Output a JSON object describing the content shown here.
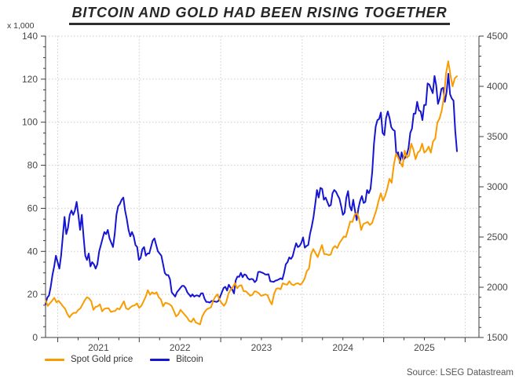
{
  "title": "BITCOIN AND GOLD HAD BEEN RISING TOGETHER",
  "left_axis_unit_label": "x 1,000",
  "source_note": "Source: LSEG Datastream",
  "legend": {
    "items": [
      {
        "label": "Spot Gold price"
      },
      {
        "label": "Bitcoin"
      }
    ]
  },
  "colors": {
    "gold": "#f89c00",
    "bitcoin": "#1515d2",
    "grid": "#cbcbcb",
    "axis": "#3d3d3d",
    "tick_text": "#474747",
    "title_text": "#262626"
  },
  "chart_data": {
    "type": "line",
    "title": "BITCOIN AND GOLD HAD BEEN RISING TOGETHER",
    "grid": true,
    "legend_position": "bottom-left",
    "x_range_years": [
      2020.85,
      2026.17
    ],
    "x_data_range": [
      2020.85,
      2025.9
    ],
    "x_major_ticks": [
      2021,
      2022,
      2023,
      2024,
      2025,
      2026
    ],
    "x_minor_step_years": 0.25,
    "x_tick_labels": [
      "2021",
      "2022",
      "2023",
      "2024",
      "2025"
    ],
    "left_axis": {
      "unit": "x 1,000",
      "applies_to": "Bitcoin (USD thousands)",
      "min": 0,
      "max": 140,
      "major_step": 20,
      "minor_step": 5,
      "labels": [
        0,
        20,
        40,
        60,
        80,
        100,
        120,
        140
      ]
    },
    "right_axis": {
      "applies_to": "Spot Gold price (USD/oz)",
      "min": 1500,
      "max": 4500,
      "major_step": 500,
      "minor_step": 100,
      "labels": [
        1500,
        2000,
        2500,
        3000,
        3500,
        4000,
        4500
      ]
    },
    "series": [
      {
        "name": "Spot Gold price",
        "axis": "right",
        "color": "#f89c00",
        "values": [
          1870,
          1815,
          1840,
          1865,
          1895,
          1850,
          1865,
          1840,
          1810,
          1785,
          1735,
          1700,
          1730,
          1745,
          1745,
          1775,
          1790,
          1830,
          1870,
          1900,
          1890,
          1860,
          1775,
          1805,
          1810,
          1830,
          1760,
          1785,
          1790,
          1790,
          1755,
          1760,
          1765,
          1790,
          1780,
          1820,
          1860,
          1790,
          1780,
          1800,
          1815,
          1820,
          1840,
          1795,
          1815,
          1860,
          1905,
          1970,
          1925,
          1950,
          1935,
          1950,
          1900,
          1880,
          1810,
          1845,
          1840,
          1830,
          1810,
          1760,
          1710,
          1730,
          1775,
          1750,
          1725,
          1700,
          1665,
          1655,
          1690,
          1650,
          1640,
          1630,
          1710,
          1750,
          1780,
          1790,
          1800,
          1865,
          1905,
          1930,
          1870,
          1840,
          1815,
          1850,
          1935,
          1975,
          2000,
          2040,
          1990,
          2015,
          2020,
          1960,
          1960,
          1940,
          1915,
          1925,
          1960,
          1955,
          1940,
          1915,
          1920,
          1930,
          1920,
          1865,
          1830,
          1935,
          1985,
          1990,
          1980,
          2040,
          2030,
          2025,
          2060,
          2030,
          2020,
          2035,
          2040,
          2025,
          2045,
          2085,
          2160,
          2185,
          2330,
          2380,
          2340,
          2300,
          2360,
          2420,
          2330,
          2330,
          2320,
          2325,
          2390,
          2410,
          2390,
          2440,
          2470,
          2505,
          2500,
          2580,
          2655,
          2650,
          2720,
          2740,
          2685,
          2570,
          2630,
          2640,
          2650,
          2620,
          2640,
          2705,
          2770,
          2860,
          2935,
          2860,
          2910,
          2985,
          3080,
          3040,
          3220,
          3330,
          3290,
          3240,
          3200,
          3360,
          3290,
          3310,
          3430,
          3370,
          3275,
          3340,
          3360,
          3430,
          3340,
          3360,
          3400,
          3340,
          3450,
          3480,
          3640,
          3680,
          3760,
          3890,
          4130,
          4250,
          4110,
          4000,
          4080,
          4100
        ]
      },
      {
        "name": "Bitcoin",
        "axis": "left",
        "values_unit": "USD thousands",
        "color": "#1515d2",
        "values": [
          15.5,
          18.5,
          19.5,
          23.5,
          29,
          33,
          38,
          35,
          32,
          38,
          47,
          56,
          48,
          51,
          57,
          59,
          57,
          59,
          63,
          57,
          50,
          57,
          47,
          38,
          36,
          39,
          33,
          35,
          34,
          32,
          34,
          40,
          43,
          46,
          49,
          48,
          50,
          46,
          44,
          42,
          48,
          57,
          61,
          62,
          64,
          65,
          59,
          55,
          50,
          47,
          49,
          47,
          43,
          42,
          36,
          37,
          41,
          42,
          38,
          39,
          39,
          42,
          45,
          46,
          43,
          40,
          39,
          38,
          34,
          30,
          29,
          29,
          27,
          21,
          20,
          19,
          21,
          22,
          23,
          24,
          24,
          23,
          21,
          20,
          19,
          20,
          19,
          19.5,
          19.5,
          19,
          20.5,
          20.5,
          18,
          16.5,
          16.5,
          16.2,
          17,
          16.8,
          16.7,
          16.5,
          17,
          19,
          21,
          23,
          23.5,
          21.8,
          24.5,
          23.2,
          22.3,
          20.5,
          26.5,
          28.3,
          28.2,
          30,
          28,
          29.3,
          29,
          27.5,
          26.9,
          27.2,
          27,
          25.7,
          26.5,
          30.4,
          30.5,
          30.2,
          29.9,
          29.3,
          29.2,
          29.4,
          26.1,
          26,
          25.8,
          26.4,
          26.6,
          27,
          27.5,
          27,
          30,
          34,
          35,
          37.2,
          36.5,
          37.8,
          41,
          43.8,
          42,
          42.5,
          44,
          46.5,
          41.7,
          42.5,
          43,
          48,
          51.5,
          56,
          62,
          68.5,
          65,
          69.5,
          69,
          64,
          65,
          63,
          61,
          61.5,
          67,
          68.5,
          67.7,
          66,
          64.5,
          61,
          57,
          58,
          65,
          68,
          61,
          59,
          64,
          59,
          54.5,
          60,
          63.5,
          65.7,
          62.5,
          63,
          68.5,
          67,
          69,
          77,
          90,
          98,
          101,
          101.5,
          104.5,
          95,
          94,
          102,
          105,
          102,
          97.7,
          96.5,
          96,
          84.5,
          86,
          81,
          86,
          82.5,
          83.5,
          85,
          88,
          95,
          97,
          104,
          104,
          109.5,
          105.5,
          105,
          101,
          108,
          108,
          118,
          117.5,
          115.5,
          113.5,
          121.5,
          117,
          108.5,
          111,
          115.5,
          116,
          109.5,
          114,
          122.5,
          113,
          111,
          110,
          96,
          86.5
        ]
      }
    ]
  }
}
